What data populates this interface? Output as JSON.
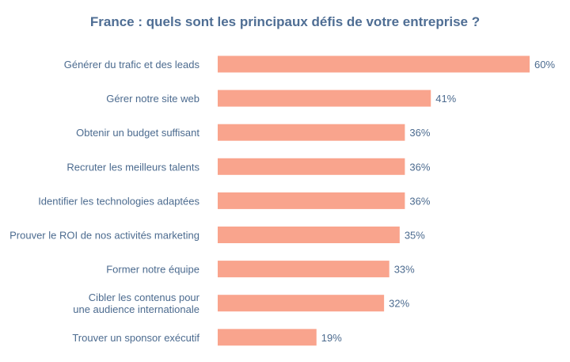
{
  "chart_data": {
    "type": "bar",
    "orientation": "horizontal",
    "title": "France : quels sont les principaux défis de votre entreprise ?",
    "xlabel": "",
    "ylabel": "",
    "grid": false,
    "xlim": [
      0,
      60
    ],
    "bar_color": "#f9a48d",
    "text_color": "#4c6b8f",
    "categories": [
      [
        "Générer du trafic et des leads"
      ],
      [
        "Gérer notre site web"
      ],
      [
        "Obtenir un budget suffisant"
      ],
      [
        "Recruter les meilleurs talents"
      ],
      [
        "Identifier les technologies adaptées"
      ],
      [
        "Prouver le ROI de nos activités marketing"
      ],
      [
        "Former notre équipe"
      ],
      [
        "Cibler les contenus pour",
        "une audience internationale"
      ],
      [
        "Trouver un sponsor exécutif"
      ]
    ],
    "values": [
      60,
      41,
      36,
      36,
      36,
      35,
      33,
      32,
      19
    ],
    "value_labels": [
      "60%",
      "41%",
      "36%",
      "36%",
      "36%",
      "35%",
      "33%",
      "32%",
      "19%"
    ]
  }
}
